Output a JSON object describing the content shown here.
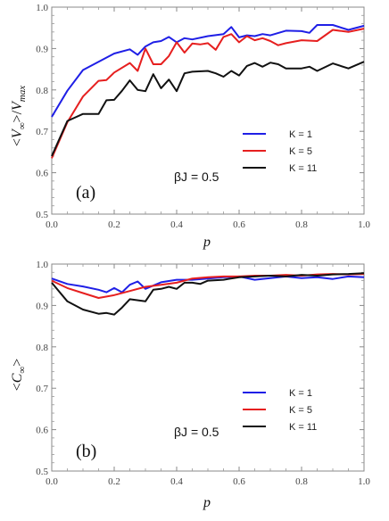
{
  "chart_data": [
    {
      "type": "line",
      "panel_label": "(a)",
      "annotation": "βJ = 0.5",
      "xlabel": "p",
      "ylabel": "<V∞>/Vmax",
      "ylabel_parts": {
        "open": "<",
        "var1": "V",
        "sub1": "∞",
        "close": ">/",
        "var2": "V",
        "sub2": "max"
      },
      "xlim": [
        0,
        1
      ],
      "ylim": [
        0.5,
        1.0
      ],
      "xticks": [
        0.0,
        0.2,
        0.4,
        0.6,
        0.8,
        1.0
      ],
      "xtick_labels": [
        "0.0",
        "0.2",
        "0.4",
        "0.6",
        "0.8",
        "1.0"
      ],
      "yticks": [
        0.5,
        0.6,
        0.7,
        0.8,
        0.9,
        1.0
      ],
      "ytick_labels": [
        "0.5",
        "0.6",
        "0.7",
        "0.8",
        "0.9",
        "1.0"
      ],
      "legend_position": "right",
      "series": [
        {
          "name": "K = 1",
          "color": "#1f1fe6",
          "x": [
            0.0,
            0.05,
            0.1,
            0.15,
            0.2,
            0.25,
            0.275,
            0.3,
            0.325,
            0.35,
            0.375,
            0.4,
            0.425,
            0.45,
            0.5,
            0.55,
            0.575,
            0.6,
            0.625,
            0.65,
            0.675,
            0.7,
            0.75,
            0.8,
            0.825,
            0.85,
            0.875,
            0.9,
            0.95,
            1.0
          ],
          "y": [
            0.735,
            0.798,
            0.848,
            0.868,
            0.888,
            0.898,
            0.885,
            0.905,
            0.915,
            0.918,
            0.928,
            0.915,
            0.925,
            0.922,
            0.93,
            0.935,
            0.952,
            0.927,
            0.932,
            0.93,
            0.935,
            0.932,
            0.943,
            0.942,
            0.938,
            0.957,
            0.957,
            0.957,
            0.945,
            0.955
          ]
        },
        {
          "name": "K = 5",
          "color": "#e61f1f",
          "x": [
            0.0,
            0.05,
            0.1,
            0.15,
            0.175,
            0.2,
            0.25,
            0.275,
            0.3,
            0.325,
            0.35,
            0.375,
            0.4,
            0.425,
            0.45,
            0.475,
            0.5,
            0.525,
            0.55,
            0.575,
            0.6,
            0.625,
            0.65,
            0.675,
            0.7,
            0.725,
            0.75,
            0.8,
            0.85,
            0.9,
            0.95,
            1.0
          ],
          "y": [
            0.635,
            0.722,
            0.784,
            0.822,
            0.824,
            0.842,
            0.865,
            0.846,
            0.9,
            0.862,
            0.862,
            0.882,
            0.915,
            0.89,
            0.912,
            0.91,
            0.913,
            0.897,
            0.928,
            0.935,
            0.915,
            0.93,
            0.92,
            0.925,
            0.918,
            0.908,
            0.913,
            0.92,
            0.918,
            0.945,
            0.94,
            0.948
          ]
        },
        {
          "name": "K = 11",
          "color": "#111111",
          "x": [
            0.0,
            0.05,
            0.1,
            0.15,
            0.175,
            0.2,
            0.225,
            0.25,
            0.275,
            0.3,
            0.325,
            0.35,
            0.375,
            0.4,
            0.425,
            0.45,
            0.5,
            0.525,
            0.55,
            0.575,
            0.6,
            0.625,
            0.65,
            0.675,
            0.7,
            0.725,
            0.75,
            0.8,
            0.825,
            0.85,
            0.9,
            0.95,
            1.0
          ],
          "y": [
            0.64,
            0.725,
            0.742,
            0.742,
            0.775,
            0.776,
            0.798,
            0.823,
            0.8,
            0.797,
            0.838,
            0.804,
            0.825,
            0.797,
            0.84,
            0.844,
            0.846,
            0.84,
            0.832,
            0.846,
            0.835,
            0.858,
            0.865,
            0.856,
            0.866,
            0.862,
            0.852,
            0.852,
            0.856,
            0.846,
            0.864,
            0.852,
            0.868
          ]
        }
      ]
    },
    {
      "type": "line",
      "panel_label": "(b)",
      "annotation": "βJ = 0.5",
      "xlabel": "p",
      "ylabel": "<C∞>",
      "ylabel_parts": {
        "open": "<",
        "var1": "C",
        "sub1": "∞",
        "close": ">"
      },
      "xlim": [
        0,
        1
      ],
      "ylim": [
        0.5,
        1.0
      ],
      "xticks": [
        0.0,
        0.2,
        0.4,
        0.6,
        0.8,
        1.0
      ],
      "xtick_labels": [
        "0.0",
        "0.2",
        "0.4",
        "0.6",
        "0.8",
        "1.0"
      ],
      "yticks": [
        0.5,
        0.6,
        0.7,
        0.8,
        0.9,
        1.0
      ],
      "ytick_labels": [
        "0.5",
        "0.6",
        "0.7",
        "0.8",
        "0.9",
        "1.0"
      ],
      "legend_position": "right",
      "series": [
        {
          "name": "K = 1",
          "color": "#1f1fe6",
          "x": [
            0.0,
            0.05,
            0.1,
            0.15,
            0.175,
            0.2,
            0.225,
            0.25,
            0.275,
            0.3,
            0.35,
            0.4,
            0.45,
            0.5,
            0.55,
            0.6,
            0.65,
            0.7,
            0.75,
            0.8,
            0.85,
            0.9,
            0.95,
            1.0
          ],
          "y": [
            0.965,
            0.952,
            0.946,
            0.938,
            0.932,
            0.942,
            0.932,
            0.95,
            0.958,
            0.94,
            0.956,
            0.962,
            0.962,
            0.965,
            0.968,
            0.97,
            0.962,
            0.966,
            0.97,
            0.966,
            0.968,
            0.964,
            0.97,
            0.968
          ]
        },
        {
          "name": "K = 5",
          "color": "#e61f1f",
          "x": [
            0.0,
            0.05,
            0.1,
            0.15,
            0.2,
            0.25,
            0.3,
            0.35,
            0.4,
            0.45,
            0.5,
            0.55,
            0.6,
            0.65,
            0.7,
            0.75,
            0.8,
            0.85,
            0.9,
            0.95,
            1.0
          ],
          "y": [
            0.96,
            0.942,
            0.93,
            0.918,
            0.925,
            0.935,
            0.945,
            0.95,
            0.955,
            0.965,
            0.968,
            0.97,
            0.97,
            0.972,
            0.972,
            0.974,
            0.972,
            0.975,
            0.976,
            0.975,
            0.976
          ]
        },
        {
          "name": "K = 11",
          "color": "#111111",
          "x": [
            0.0,
            0.05,
            0.1,
            0.15,
            0.175,
            0.2,
            0.225,
            0.25,
            0.3,
            0.325,
            0.35,
            0.375,
            0.4,
            0.425,
            0.45,
            0.475,
            0.5,
            0.55,
            0.6,
            0.65,
            0.7,
            0.75,
            0.8,
            0.85,
            0.9,
            0.95,
            1.0
          ],
          "y": [
            0.955,
            0.91,
            0.89,
            0.88,
            0.882,
            0.878,
            0.895,
            0.915,
            0.91,
            0.938,
            0.94,
            0.945,
            0.94,
            0.955,
            0.955,
            0.952,
            0.96,
            0.962,
            0.968,
            0.97,
            0.972,
            0.97,
            0.974,
            0.972,
            0.975,
            0.976,
            0.978
          ]
        }
      ]
    }
  ]
}
